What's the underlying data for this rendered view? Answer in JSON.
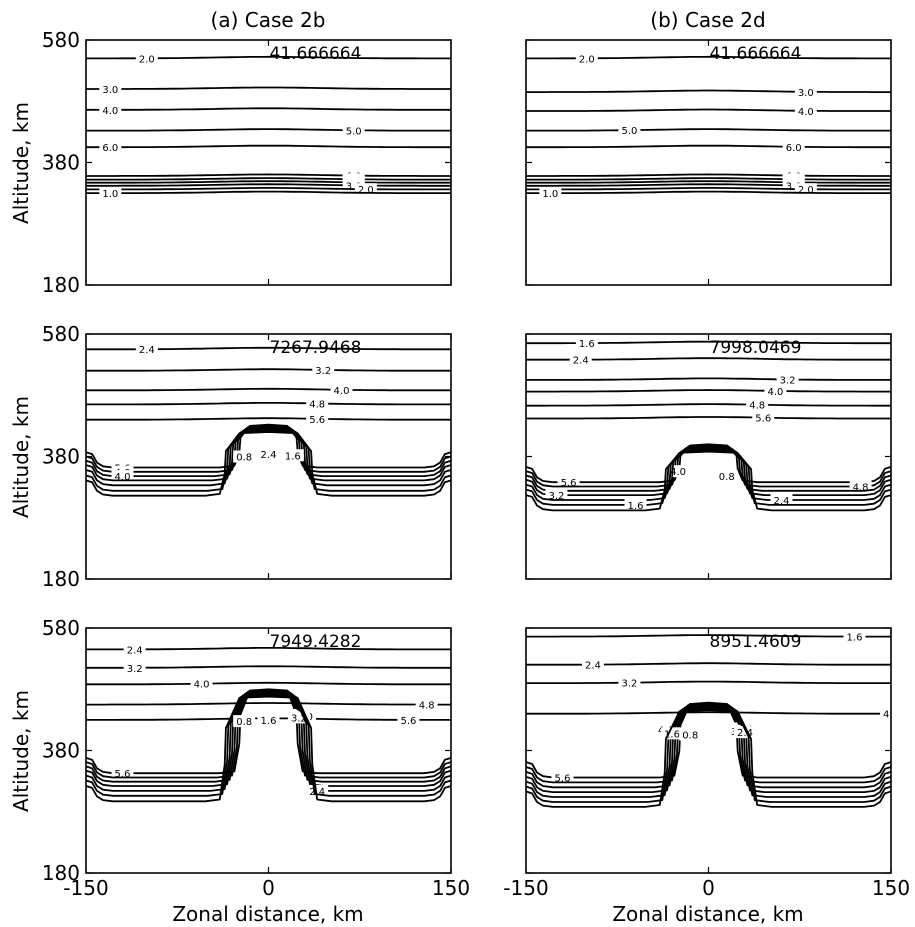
{
  "chart_data": {
    "type": "contour",
    "columns": [
      "(a) Case 2b",
      "(b) Case 2d"
    ],
    "ylabel": "Altitude, km",
    "xlabel": "Zonal distance, km",
    "ylim": [
      180,
      580
    ],
    "yticks": [
      "180",
      "380",
      "580"
    ],
    "xlim": [
      -150,
      150
    ],
    "xticks": [
      "-150",
      "0",
      "150"
    ],
    "panels": [
      {
        "column": 0,
        "row": 0,
        "time_label": "41.666664",
        "contours": [
          {
            "level": "2.0",
            "kind": "flat",
            "y": 550,
            "label_x": -100
          },
          {
            "level": "3.0",
            "kind": "flat",
            "y": 500,
            "label_x": -130
          },
          {
            "level": "4.0",
            "kind": "flat",
            "y": 466,
            "label_x": -130
          },
          {
            "level": "5.0",
            "kind": "flat",
            "y": 432,
            "label_x": 70
          },
          {
            "level": "6.0",
            "kind": "flat",
            "y": 405,
            "label_x": -130
          },
          {
            "level": "6.0",
            "kind": "flat",
            "y": 358,
            "label_x": 70
          },
          {
            "level": "5.0",
            "kind": "flat",
            "y": 352,
            "label_x": 70
          },
          {
            "level": "4.0",
            "kind": "flat",
            "y": 347,
            "label_x": 70
          },
          {
            "level": "3.0",
            "kind": "flat",
            "y": 342,
            "label_x": 70
          },
          {
            "level": "2.0",
            "kind": "flat",
            "y": 336,
            "label_x": 80
          },
          {
            "level": "1.0",
            "kind": "flat",
            "y": 330,
            "label_x": -130
          }
        ]
      },
      {
        "column": 1,
        "row": 0,
        "time_label": "41.666664",
        "contours": [
          {
            "level": "2.0",
            "kind": "flat",
            "y": 550,
            "label_x": -100
          },
          {
            "level": "3.0",
            "kind": "flat",
            "y": 495,
            "label_x": 80
          },
          {
            "level": "4.0",
            "kind": "flat",
            "y": 464,
            "label_x": 80
          },
          {
            "level": "5.0",
            "kind": "flat",
            "y": 432,
            "label_x": -65
          },
          {
            "level": "6.0",
            "kind": "flat",
            "y": 405,
            "label_x": 70
          },
          {
            "level": "6.0",
            "kind": "flat",
            "y": 358,
            "label_x": 70
          },
          {
            "level": "5.0",
            "kind": "flat",
            "y": 352,
            "label_x": 70
          },
          {
            "level": "4.0",
            "kind": "flat",
            "y": 347,
            "label_x": 70
          },
          {
            "level": "3.0",
            "kind": "flat",
            "y": 342,
            "label_x": 70
          },
          {
            "level": "2.0",
            "kind": "flat",
            "y": 336,
            "label_x": 80
          },
          {
            "level": "1.0",
            "kind": "flat",
            "y": 330,
            "label_x": -130
          }
        ]
      },
      {
        "column": 0,
        "row": 1,
        "time_label": "7267.9468",
        "contours": [
          {
            "level": "2.4",
            "kind": "flat",
            "y": 555,
            "label_x": -100
          },
          {
            "level": "3.2",
            "kind": "flat",
            "y": 520,
            "label_x": 45
          },
          {
            "level": "4.0",
            "kind": "flat",
            "y": 488,
            "label_x": 60
          },
          {
            "level": "4.8",
            "kind": "flat",
            "y": 465,
            "label_x": 40
          },
          {
            "level": "5.6",
            "kind": "flat",
            "y": 440,
            "label_x": 40
          },
          {
            "level": "5.6",
            "kind": "bump",
            "base": 362,
            "top": 432,
            "hw": 22,
            "label_x": -120
          },
          {
            "level": "4.8",
            "kind": "bump",
            "base": 355,
            "top": 430,
            "hw": 24,
            "label_x": -120
          },
          {
            "level": "4.0",
            "kind": "bump",
            "base": 348,
            "top": 428,
            "hw": 26,
            "label_x": -120
          },
          {
            "level": "3.2",
            "kind": "bump",
            "base": 341,
            "top": 426,
            "hw": 28,
            "label_x": 0
          },
          {
            "level": "2.4",
            "kind": "bump",
            "base": 333,
            "top": 424,
            "hw": 30,
            "label_x": 0
          },
          {
            "level": "1.6",
            "kind": "bump",
            "base": 324,
            "top": 422,
            "hw": 32,
            "label_x": 20
          },
          {
            "level": "0.8",
            "kind": "bump",
            "base": 316,
            "top": 420,
            "hw": 34,
            "label_x": -20
          }
        ]
      },
      {
        "column": 1,
        "row": 1,
        "time_label": "7998.0469",
        "contours": [
          {
            "level": "1.6",
            "kind": "flat",
            "y": 565,
            "label_x": -100
          },
          {
            "level": "2.4",
            "kind": "flat",
            "y": 538,
            "label_x": -105
          },
          {
            "level": "3.2",
            "kind": "flat",
            "y": 505,
            "label_x": 65
          },
          {
            "level": "4.0",
            "kind": "flat",
            "y": 486,
            "label_x": 55
          },
          {
            "level": "4.8",
            "kind": "flat",
            "y": 463,
            "label_x": 40
          },
          {
            "level": "5.6",
            "kind": "flat",
            "y": 442,
            "label_x": 45
          },
          {
            "level": "5.6",
            "kind": "bump",
            "base": 338,
            "top": 400,
            "hw": 22,
            "label_x": -115
          },
          {
            "level": "4.8",
            "kind": "bump",
            "base": 331,
            "top": 398,
            "hw": 24,
            "label_x": 125
          },
          {
            "level": "4.0",
            "kind": "bump",
            "base": 324,
            "top": 396,
            "hw": 26,
            "label_x": -25
          },
          {
            "level": "3.2",
            "kind": "bump",
            "base": 317,
            "top": 394,
            "hw": 28,
            "label_x": -125
          },
          {
            "level": "2.4",
            "kind": "bump",
            "base": 309,
            "top": 392,
            "hw": 30,
            "label_x": 60
          },
          {
            "level": "1.6",
            "kind": "bump",
            "base": 301,
            "top": 390,
            "hw": 32,
            "label_x": -60
          },
          {
            "level": "0.8",
            "kind": "bump",
            "base": 292,
            "top": 388,
            "hw": 34,
            "label_x": 15
          }
        ]
      },
      {
        "column": 0,
        "row": 2,
        "time_label": "7949.4282",
        "contours": [
          {
            "level": "2.4",
            "kind": "flat",
            "y": 545,
            "label_x": -110
          },
          {
            "level": "3.2",
            "kind": "flat",
            "y": 515,
            "label_x": -110
          },
          {
            "level": "4.0",
            "kind": "flat",
            "y": 488,
            "label_x": -55
          },
          {
            "level": "4.8",
            "kind": "flat",
            "y": 455,
            "label_x": 130
          },
          {
            "level": "5.6",
            "kind": "flat",
            "y": 430,
            "label_x": 115
          },
          {
            "level": "5.6",
            "kind": "bump",
            "base": 343,
            "top": 480,
            "hw": 22,
            "label_x": -120
          },
          {
            "level": "4.8",
            "kind": "bump",
            "base": 336,
            "top": 478,
            "hw": 24,
            "label_x": 25
          },
          {
            "level": "4.0",
            "kind": "bump",
            "base": 329,
            "top": 476,
            "hw": 26,
            "label_x": 30
          },
          {
            "level": "3.2",
            "kind": "bump",
            "base": 322,
            "top": 474,
            "hw": 28,
            "label_x": 25
          },
          {
            "level": "2.4",
            "kind": "bump",
            "base": 314,
            "top": 472,
            "hw": 30,
            "label_x": 40
          },
          {
            "level": "1.6",
            "kind": "bump",
            "base": 306,
            "top": 470,
            "hw": 32,
            "label_x": 0
          },
          {
            "level": "0.8",
            "kind": "bump",
            "base": 297,
            "top": 468,
            "hw": 34,
            "label_x": -20
          }
        ]
      },
      {
        "column": 1,
        "row": 2,
        "time_label": "8951.4609",
        "contours": [
          {
            "level": "1.6",
            "kind": "flat",
            "y": 566,
            "label_x": 120
          },
          {
            "level": "2.4",
            "kind": "flat",
            "y": 520,
            "label_x": -95
          },
          {
            "level": "3.2",
            "kind": "flat",
            "y": 490,
            "label_x": -65
          },
          {
            "level": "4.0",
            "kind": "flat",
            "y": 440,
            "label_x": 150
          },
          {
            "level": "5.6",
            "kind": "bump",
            "base": 336,
            "top": 458,
            "hw": 22,
            "label_x": -120
          },
          {
            "level": "4.8",
            "kind": "bump",
            "base": 328,
            "top": 456,
            "hw": 24,
            "label_x": 30
          },
          {
            "level": "4.0",
            "kind": "bump",
            "base": 320,
            "top": 454,
            "hw": 26,
            "label_x": -35
          },
          {
            "level": "3.2",
            "kind": "bump",
            "base": 312,
            "top": 452,
            "hw": 28,
            "label_x": 25
          },
          {
            "level": "2.4",
            "kind": "bump",
            "base": 304,
            "top": 450,
            "hw": 30,
            "label_x": 30
          },
          {
            "level": "1.6",
            "kind": "bump",
            "base": 296,
            "top": 448,
            "hw": 32,
            "label_x": -30
          },
          {
            "level": "0.8",
            "kind": "bump",
            "base": 288,
            "top": 446,
            "hw": 34,
            "label_x": -15
          }
        ]
      }
    ]
  }
}
